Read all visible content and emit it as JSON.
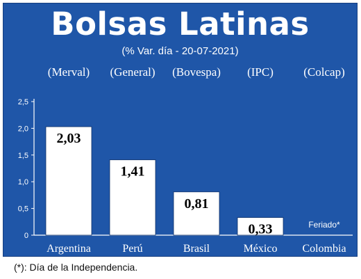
{
  "header": {
    "title": "Bolsas Latinas",
    "subtitle": "(% Var. día - 20-07-2021)"
  },
  "footnote": "(*): Día de la Independencia.",
  "colors": {
    "background": "#1f56a8",
    "bar": "#ffffff",
    "text": "#ffffff"
  },
  "chart_data": {
    "type": "bar",
    "categories": [
      "Argentina",
      "Perú",
      "Brasil",
      "México",
      "Colombia"
    ],
    "index_labels": [
      "(Merval)",
      "(General)",
      "(Bovespa)",
      "(IPC)",
      "(Colcap)"
    ],
    "values": [
      2.03,
      1.41,
      0.81,
      0.33,
      null
    ],
    "value_labels": [
      "2,03",
      "1,41",
      "0,81",
      "0,33",
      ""
    ],
    "annotations": [
      {
        "category": "Colombia",
        "text": "Feriado*"
      }
    ],
    "yticks": [
      0,
      0.5,
      1.0,
      1.5,
      2.0,
      2.5
    ],
    "ytick_labels": [
      "0",
      "0,5",
      "1,0",
      "1,5",
      "2,0",
      "2,5"
    ],
    "ylim": [
      0,
      2.5
    ],
    "grid": false,
    "title": "Bolsas Latinas",
    "subtitle": "(% Var. día - 20-07-2021)",
    "xlabel": "",
    "ylabel": ""
  }
}
